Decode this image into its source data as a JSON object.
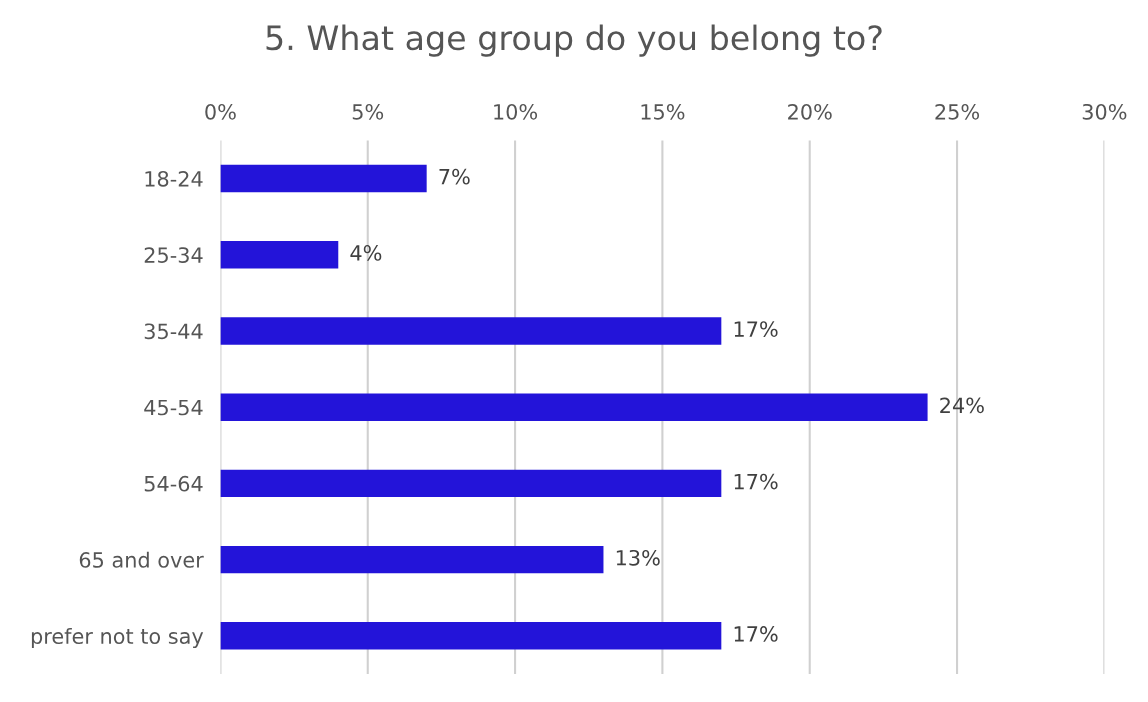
{
  "chart_data": {
    "type": "bar",
    "orientation": "horizontal",
    "title": "5. What age group do you belong to?",
    "categories": [
      "18-24",
      "25-34",
      "35-44",
      "45-54",
      "54-64",
      "65 and over",
      "prefer not to say"
    ],
    "values": [
      7,
      4,
      17,
      24,
      17,
      13,
      17
    ],
    "value_labels": [
      "7%",
      "4%",
      "17%",
      "24%",
      "17%",
      "13%",
      "17%"
    ],
    "color": "#2314d9",
    "xlim": [
      0,
      30
    ],
    "xticks": [
      {
        "value": 0,
        "label": "0%"
      },
      {
        "value": 5,
        "label": "5%"
      },
      {
        "value": 10,
        "label": "10%"
      },
      {
        "value": 15,
        "label": "15%"
      },
      {
        "value": 20,
        "label": "20%"
      },
      {
        "value": 25,
        "label": "25%"
      },
      {
        "value": 30,
        "label": "30%"
      }
    ],
    "grid": "x",
    "legend": false
  }
}
